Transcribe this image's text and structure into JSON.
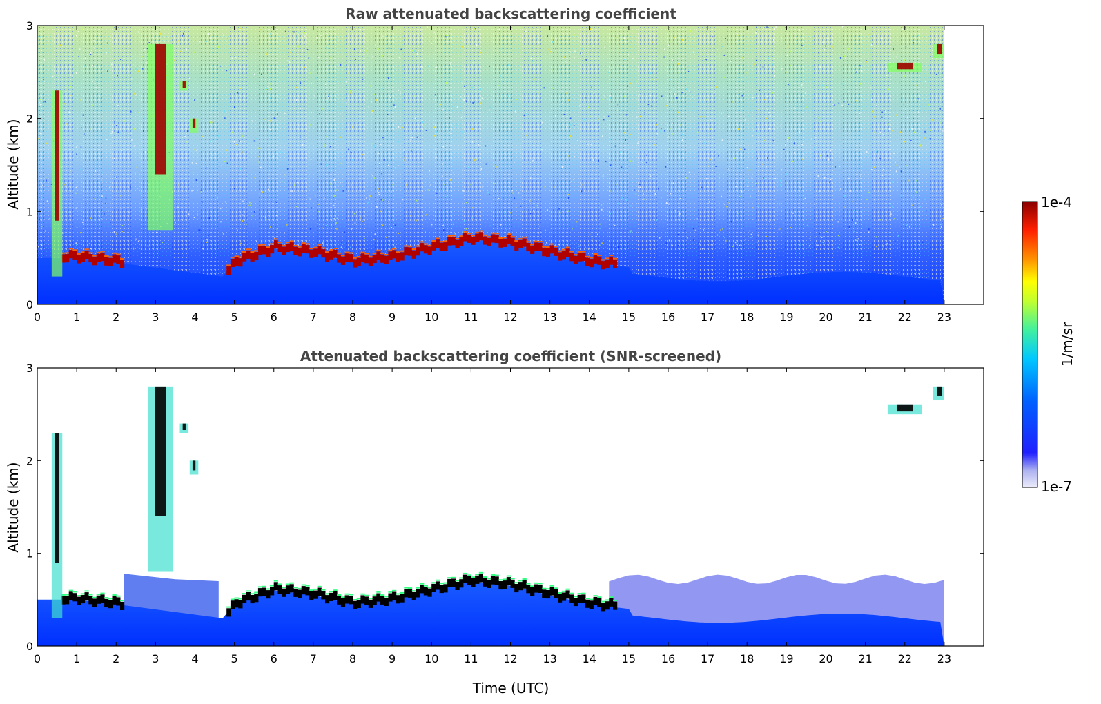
{
  "chart_data": [
    {
      "type": "heatmap",
      "title": "Raw attenuated backscattering coefficient",
      "ylabel": "Altitude (km)",
      "xlabel": "",
      "xlim": [
        0,
        24
      ],
      "ylim": [
        0,
        3
      ],
      "xticks": [
        "0",
        "1",
        "2",
        "3",
        "4",
        "5",
        "6",
        "7",
        "8",
        "9",
        "10",
        "11",
        "12",
        "13",
        "14",
        "15",
        "16",
        "17",
        "18",
        "19",
        "20",
        "21",
        "22",
        "23"
      ],
      "yticks": [
        "0",
        "1",
        "2",
        "3"
      ],
      "data_end_time": 23,
      "boundary_layer_top_km": [
        [
          0.5,
          0.5
        ],
        [
          1,
          0.5
        ],
        [
          2,
          0.45
        ],
        [
          4.7,
          0.3
        ],
        [
          5,
          0.45
        ],
        [
          6,
          0.6
        ],
        [
          7,
          0.55
        ],
        [
          8,
          0.45
        ],
        [
          9,
          0.5
        ],
        [
          10,
          0.6
        ],
        [
          11,
          0.7
        ],
        [
          12,
          0.65
        ],
        [
          13,
          0.55
        ],
        [
          14,
          0.45
        ],
        [
          15,
          0.4
        ]
      ],
      "clouds": [
        {
          "time": [
            0.4,
            0.6
          ],
          "altitude": [
            0.3,
            2.3
          ]
        },
        {
          "time": [
            2.85,
            3.4
          ],
          "altitude": [
            0.8,
            2.8
          ]
        },
        {
          "time": [
            3.65,
            3.8
          ],
          "altitude": [
            2.3,
            2.4
          ]
        },
        {
          "time": [
            3.9,
            4.05
          ],
          "altitude": [
            1.85,
            2.0
          ]
        },
        {
          "time": [
            21.6,
            22.4
          ],
          "altitude": [
            2.5,
            2.6
          ]
        },
        {
          "time": [
            22.75,
            23.0
          ],
          "altitude": [
            2.65,
            2.8
          ]
        }
      ]
    },
    {
      "type": "heatmap",
      "title": "Attenuated backscattering coefficient (SNR-screened)",
      "ylabel": "Altitude (km)",
      "xlabel": "Time (UTC)",
      "xlim": [
        0,
        24
      ],
      "ylim": [
        0,
        3
      ],
      "xticks": [
        "0",
        "1",
        "2",
        "3",
        "4",
        "5",
        "6",
        "7",
        "8",
        "9",
        "10",
        "11",
        "12",
        "13",
        "14",
        "15",
        "16",
        "17",
        "18",
        "19",
        "20",
        "21",
        "22",
        "23"
      ],
      "yticks": [
        "0",
        "1",
        "2",
        "3"
      ],
      "data_end_time": 23
    }
  ],
  "colorbar": {
    "label": "1/m/sr",
    "max_label": "1e-4",
    "min_label": "1e-7",
    "colors": [
      "#e8e8f8",
      "#c0c0f0",
      "#9090ec",
      "#5a5af0",
      "#0000ff",
      "#0040ff",
      "#0080ff",
      "#00c0ff",
      "#00e0e0",
      "#30f0a0",
      "#80ff60",
      "#c0ff30",
      "#ffff00",
      "#ffc000",
      "#ff8000",
      "#ff4000",
      "#e00000",
      "#8b0000"
    ]
  }
}
